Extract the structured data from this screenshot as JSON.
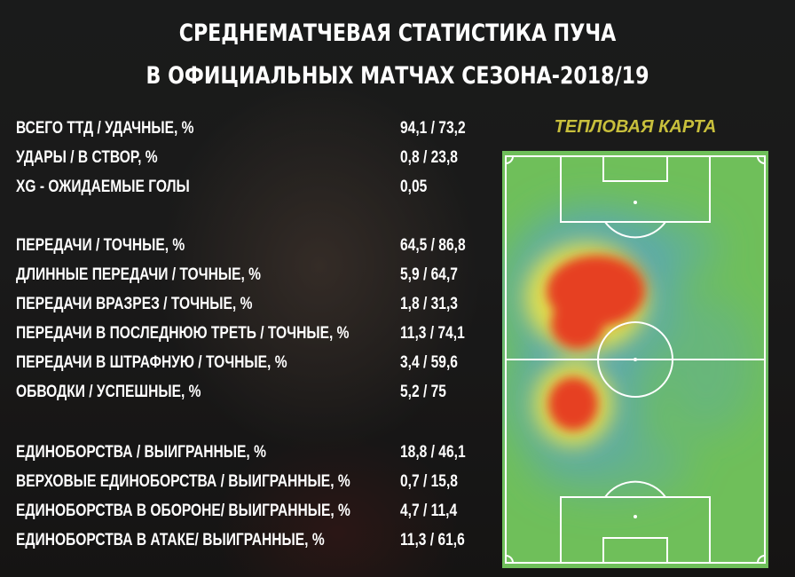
{
  "title": {
    "line1": "СРЕДНЕМАТЧЕВАЯ СТАТИСТИКА ПУЧА",
    "line2": "В ОФИЦИАЛЬНЫХ МАТЧАХ СЕЗОНА-2018/19"
  },
  "heatmap": {
    "title": "ТЕПЛОВАЯ КАРТА",
    "colors": {
      "pitch": "#6fbf5a",
      "low": "#5aa7b8",
      "mid": "#e8e24a",
      "high": "#e64020",
      "lines": "#ffffff"
    }
  },
  "stats": [
    {
      "label": "ВСЕГО ТТД / УДАЧНЫЕ, %",
      "value": "94,1 / 73,2"
    },
    {
      "label": "УДАРЫ / В СТВОР, %",
      "value": "0,8 / 23,8"
    },
    {
      "label": "XG - ОЖИДАЕМЫЕ ГОЛЫ",
      "value": "0,05"
    },
    {
      "label": "ПЕРЕДАЧИ / ТОЧНЫЕ, %",
      "value": "64,5 / 86,8"
    },
    {
      "label": "ДЛИННЫЕ ПЕРЕДАЧИ / ТОЧНЫЕ, %",
      "value": "5,9 / 64,7"
    },
    {
      "label": "ПЕРЕДАЧИ ВРАЗРЕЗ / ТОЧНЫЕ, %",
      "value": "1,8 / 31,3"
    },
    {
      "label": "ПЕРЕДАЧИ В ПОСЛЕДНЮЮ ТРЕТЬ / ТОЧНЫЕ, %",
      "value": "11,3 / 74,1"
    },
    {
      "label": "ПЕРЕДАЧИ В ШТРАФНУЮ / ТОЧНЫЕ, %",
      "value": "3,4 / 59,6"
    },
    {
      "label": "ОБВОДКИ / УСПЕШНЫЕ, %",
      "value": "5,2 / 75"
    },
    {
      "label": "ЕДИНОБОРСТВА / ВЫИГРАННЫЕ, %",
      "value": "18,8 / 46,1"
    },
    {
      "label": "ВЕРХОВЫЕ ЕДИНОБОРСТВА / ВЫИГРАННЫЕ, %",
      "value": "0,7 / 15,8"
    },
    {
      "label": "ЕДИНОБОРСТВА В ОБОРОНЕ/ ВЫИГРАННЫЕ, %",
      "value": "4,7 / 11,4"
    },
    {
      "label": "ЕДИНОБОРСТВА В АТАКЕ/ ВЫИГРАННЫЕ, %",
      "value": "11,3 / 61,6"
    }
  ]
}
